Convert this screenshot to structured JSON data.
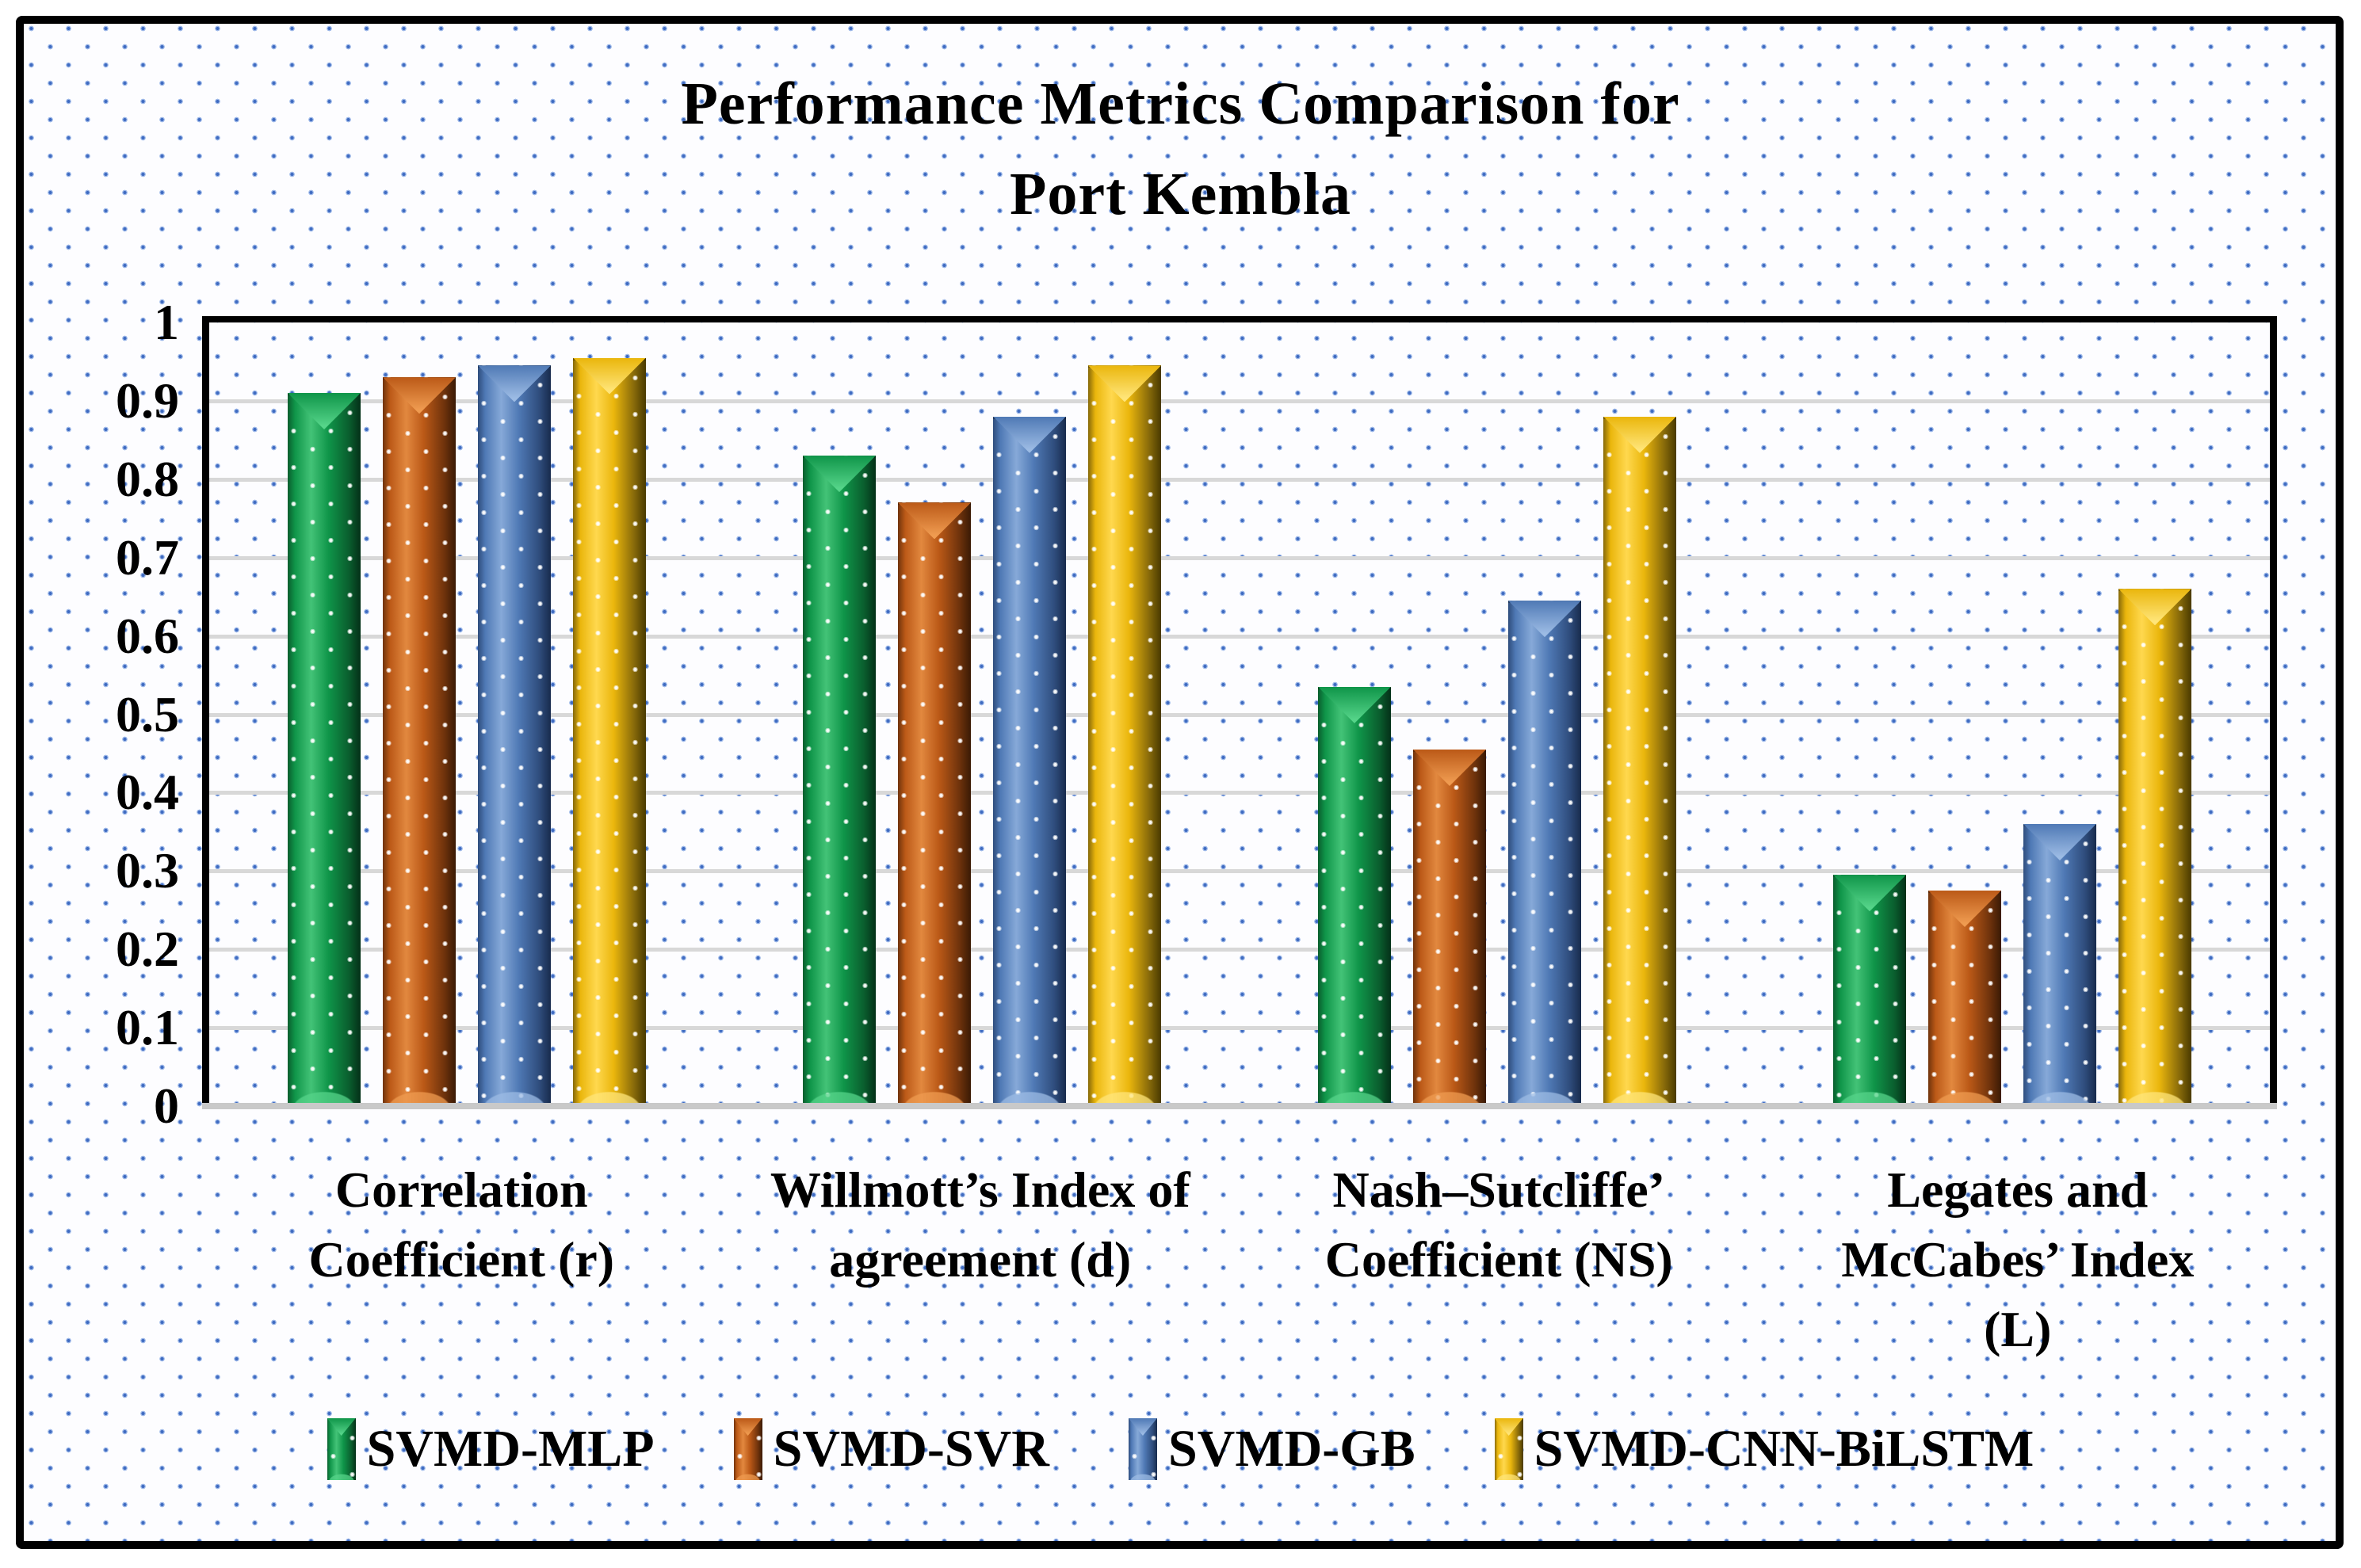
{
  "title": {
    "line1": "Performance Metrics Comparison for",
    "line2": "Port Kembla"
  },
  "chart_data": {
    "type": "bar",
    "title": "Performance Metrics Comparison for Port Kembla",
    "categories": [
      "Correlation Coefficient (r)",
      "Willmott’s Index of agreement (d)",
      "Nash–Sutcliffe’ Coefficient (NS)",
      "Legates and McCabes’ Index (L)"
    ],
    "categories_wrapped": [
      [
        "Correlation",
        "Coefficient (r)"
      ],
      [
        "Willmott’s Index of",
        "agreement (d)"
      ],
      [
        "Nash–Sutcliffe’",
        "Coefficient (NS)"
      ],
      [
        "Legates and",
        "McCabes’ Index",
        "(L)"
      ]
    ],
    "series": [
      {
        "name": "SVMD-MLP",
        "color": "#0f9549",
        "values": [
          0.91,
          0.83,
          0.535,
          0.295
        ]
      },
      {
        "name": "SVMD-SVR",
        "color": "#bb5917",
        "values": [
          0.93,
          0.77,
          0.455,
          0.275
        ]
      },
      {
        "name": "SVMD-GB",
        "color": "#4f79b5",
        "values": [
          0.945,
          0.88,
          0.645,
          0.36
        ]
      },
      {
        "name": "SVMD-CNN-BiLSTM",
        "color": "#eab60c",
        "values": [
          0.955,
          0.945,
          0.88,
          0.66
        ]
      }
    ],
    "xlabel": "",
    "ylabel": "",
    "ylim": [
      0,
      1
    ],
    "yticks": [
      "1",
      "0.9",
      "0.8",
      "0.7",
      "0.6",
      "0.5",
      "0.4",
      "0.3",
      "0.2",
      "0.1",
      "0"
    ],
    "grid": true,
    "legend_position": "bottom"
  }
}
